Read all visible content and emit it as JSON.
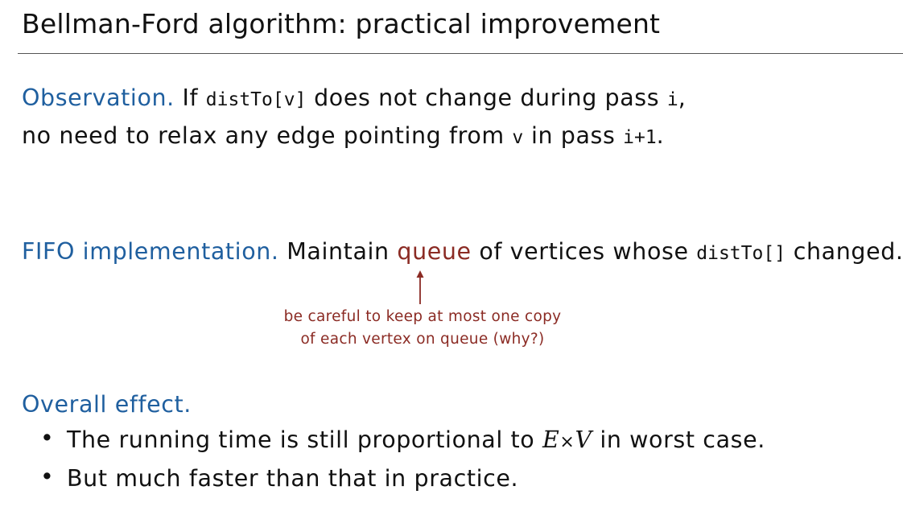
{
  "slide": {
    "title": "Bellman-Ford algorithm:  practical improvement"
  },
  "observation": {
    "label": "Observation.",
    "line1_a": "If",
    "line1_code1": "distTo[v]",
    "line1_b": "does not change during pass",
    "line1_code2": "i",
    "line1_c": ",",
    "line2_a": "no need to relax any edge pointing from",
    "line2_code1": "v",
    "line2_b": "in pass",
    "line2_code2": "i+1",
    "line2_c": "."
  },
  "fifo": {
    "label": "FIFO implementation.",
    "text_a": "Maintain",
    "highlight": "queue",
    "text_b": "of vertices whose",
    "code": "distTo[]",
    "text_c": "changed.",
    "note_line1": "be careful to keep at most one copy",
    "note_line2": "of each vertex on queue (why?)"
  },
  "overall": {
    "label": "Overall effect.",
    "bullets": [
      {
        "text_a": "The running time is still proportional to",
        "math_e": "E",
        "math_times": "×",
        "math_v": "V",
        "text_b": "in worst case."
      },
      {
        "text": "But much faster than that in practice."
      }
    ],
    "bullet_symbol": "•"
  },
  "colors": {
    "heading_blue": "#1f5f9f",
    "accent_red": "#8b2b24",
    "text": "#111111"
  }
}
